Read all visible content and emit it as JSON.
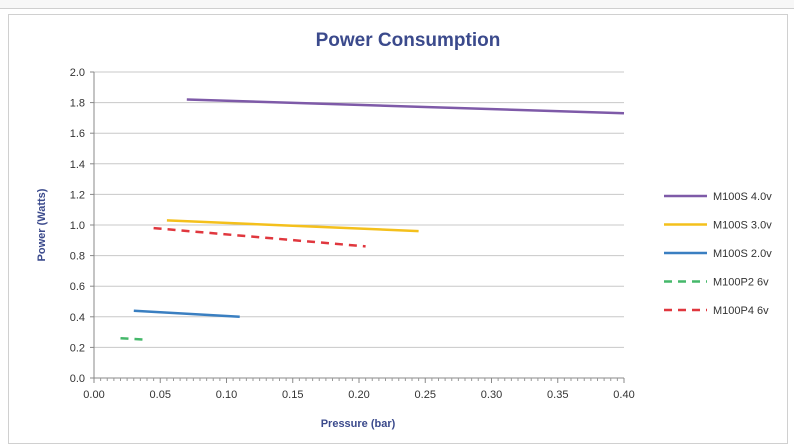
{
  "chart_data": {
    "type": "line",
    "title": "Power Consumption",
    "xlabel": "Pressure (bar)",
    "ylabel": "Power (Watts)",
    "xlim": [
      0,
      0.4
    ],
    "ylim": [
      0,
      2.0
    ],
    "x_ticks": [
      "0.00",
      "0.05",
      "0.10",
      "0.15",
      "0.20",
      "0.25",
      "0.30",
      "0.35",
      "0.40"
    ],
    "y_ticks": [
      "0.0",
      "0.2",
      "0.4",
      "0.6",
      "0.8",
      "1.0",
      "1.2",
      "1.4",
      "1.6",
      "1.8",
      "2.0"
    ],
    "grid": "horizontal",
    "legend_position": "right",
    "series": [
      {
        "name": "M100S 4.0v",
        "color": "#7e5aa8",
        "dash": "solid",
        "x": [
          0.07,
          0.4
        ],
        "y": [
          1.82,
          1.73
        ]
      },
      {
        "name": "M100S 3.0v",
        "color": "#f4c01c",
        "dash": "solid",
        "x": [
          0.055,
          0.245
        ],
        "y": [
          1.03,
          0.96
        ]
      },
      {
        "name": "M100S 2.0v",
        "color": "#3a7fc1",
        "dash": "solid",
        "x": [
          0.03,
          0.11
        ],
        "y": [
          0.44,
          0.4
        ]
      },
      {
        "name": "M100P2 6v",
        "color": "#45b86a",
        "dash": "dashed",
        "x": [
          0.02,
          0.04
        ],
        "y": [
          0.26,
          0.25
        ]
      },
      {
        "name": "M100P4 6v",
        "color": "#e0373e",
        "dash": "dashed",
        "x": [
          0.045,
          0.205
        ],
        "y": [
          0.98,
          0.86
        ]
      }
    ]
  }
}
